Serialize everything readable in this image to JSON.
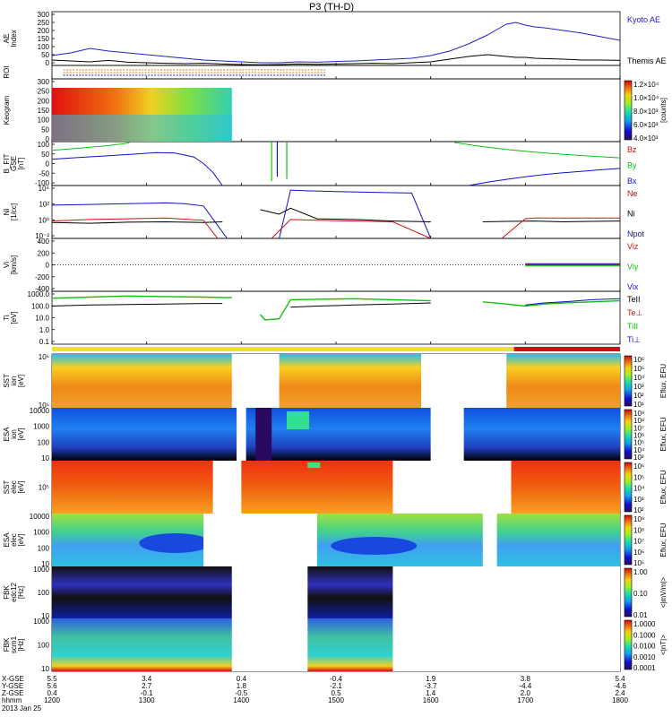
{
  "title": "P3 (TH-D)",
  "colors": {
    "kyoto": "#2020c0",
    "themis": "#000000",
    "bx": "#1010c8",
    "by": "#10c010",
    "bz": "#d01010",
    "red": "#d01010",
    "green": "#10c010",
    "blue": "#1010c8",
    "roi_orange": "#e07818",
    "roi_blue": "#202090",
    "bar_yellow": "#f0e028",
    "bar_red": "#d01010"
  },
  "chart_data": [
    {
      "type": "line",
      "id": "ae",
      "ylabel": "AE Index",
      "ylim": [
        0,
        300
      ],
      "yticks": [
        "300",
        "250",
        "200",
        "150",
        "100",
        "50",
        "0"
      ],
      "legend": [
        "Kyoto AE",
        "Themis AE"
      ],
      "x": [
        1200,
        1220,
        1240,
        1260,
        1280,
        1300,
        1320,
        1340,
        1360,
        1380,
        1400,
        1420,
        1440,
        1460,
        1480,
        1500,
        1520,
        1540,
        1560,
        1580,
        1600,
        1620,
        1640,
        1660,
        1670,
        1680,
        1690,
        1700,
        1710,
        1720,
        1740,
        1760,
        1780,
        1800
      ],
      "series": [
        {
          "name": "Kyoto AE",
          "values": [
            55,
            70,
            95,
            80,
            70,
            60,
            50,
            40,
            30,
            25,
            20,
            15,
            15,
            20,
            18,
            22,
            25,
            30,
            35,
            40,
            55,
            80,
            120,
            170,
            200,
            230,
            240,
            225,
            215,
            210,
            195,
            180,
            160,
            140
          ]
        },
        {
          "name": "Themis AE",
          "values": [
            30,
            25,
            20,
            28,
            18,
            15,
            12,
            10,
            12,
            8,
            5,
            4,
            5,
            8,
            6,
            8,
            10,
            12,
            10,
            15,
            20,
            35,
            50,
            60,
            55,
            50,
            45,
            45,
            40,
            38,
            35,
            30,
            30,
            28
          ]
        }
      ]
    },
    {
      "type": "line",
      "id": "roi",
      "ylabel": "ROI",
      "segments": [
        {
          "start": 1212,
          "end": 1490
        }
      ],
      "rows": 3
    },
    {
      "type": "heatmap",
      "id": "keogram",
      "ylabel": "Keogram",
      "ylim": [
        0,
        300
      ],
      "yticks": [
        "300",
        "250",
        "200",
        "150",
        "100",
        "50",
        "0"
      ],
      "data_range": [
        1200,
        1390
      ],
      "colorbar": {
        "label": "[counts]",
        "ticks": [
          "1.2×10⁴",
          "1.0×10⁴",
          "8.0×10³",
          "6.0×10³",
          "4.0×10³"
        ]
      }
    },
    {
      "type": "line",
      "id": "bfield",
      "ylabel": "B_FIT GSE [nT]",
      "ylim": [
        -100,
        100
      ],
      "yticks": [
        "100",
        "50",
        "0",
        "-50",
        "-100"
      ],
      "legend": [
        "Bz",
        "By",
        "Bx"
      ],
      "series": [
        {
          "name": "Bx",
          "x": [
            1200,
            1230,
            1260,
            1290,
            1310,
            1330,
            1350,
            1360,
            1370,
            1380
          ],
          "values": [
            20,
            28,
            36,
            44,
            50,
            48,
            30,
            0,
            -40,
            -100
          ]
        },
        {
          "name": "By",
          "x": [
            1200,
            1230,
            1260,
            1278,
            1282
          ],
          "values": [
            60,
            70,
            82,
            92,
            96
          ]
        },
        {
          "name": "Bx",
          "x": [
            1640,
            1660,
            1680,
            1700,
            1720,
            1740,
            1760,
            1780,
            1800
          ],
          "values": [
            -100,
            -85,
            -72,
            -60,
            -50,
            -42,
            -35,
            -28,
            -22
          ]
        },
        {
          "name": "By",
          "x": [
            1625,
            1650,
            1680,
            1710,
            1740,
            1770,
            1800
          ],
          "values": [
            96,
            80,
            64,
            52,
            42,
            34,
            26
          ]
        }
      ],
      "spikes": [
        {
          "name": "By",
          "x": 1432,
          "values": [
            100,
            -80
          ]
        },
        {
          "name": "By",
          "x": 1448,
          "values": [
            100,
            -70
          ]
        },
        {
          "name": "Bx",
          "x": 1438,
          "values": [
            100,
            -60
          ]
        }
      ]
    },
    {
      "type": "line",
      "id": "density",
      "ylabel": "Ni [1/cc]",
      "ylim": [
        -2,
        5
      ],
      "log": true,
      "yticks": [
        "10⁴",
        "10²",
        "10⁰",
        "10⁻²"
      ],
      "legend": [
        "Ne",
        "Ni",
        "Npot"
      ],
      "series": [
        {
          "name": "Npot",
          "x": [
            1200,
            1240,
            1280,
            1320,
            1340,
            1360,
            1385
          ],
          "values": [
            2.4,
            2.5,
            2.6,
            2.7,
            2.6,
            2.3,
            -2
          ]
        },
        {
          "name": "Ni",
          "x": [
            1200,
            1240,
            1280,
            1320,
            1360,
            1380
          ],
          "values": [
            0.1,
            0.0,
            0.15,
            0.2,
            0.1,
            0.2
          ]
        },
        {
          "name": "Ne",
          "x": [
            1200,
            1240,
            1280,
            1320,
            1360,
            1375
          ],
          "values": [
            0.3,
            0.5,
            0.6,
            0.7,
            0.4,
            -2
          ]
        },
        {
          "name": "Npot",
          "x": [
            1440,
            1452,
            1470,
            1500,
            1540,
            1580,
            1600
          ],
          "values": [
            -2,
            4.4,
            4.3,
            4.2,
            4.1,
            4.0,
            -2
          ]
        },
        {
          "name": "Ni",
          "x": [
            1420,
            1440,
            1452,
            1480,
            1520,
            1560,
            1600
          ],
          "values": [
            1.8,
            1.2,
            2.0,
            0.6,
            0.5,
            0.3,
            0.2
          ]
        },
        {
          "name": "Ne",
          "x": [
            1432,
            1452,
            1480,
            1520,
            1560,
            1600
          ],
          "values": [
            -2,
            0.5,
            0.4,
            0.3,
            0.2,
            -2
          ]
        },
        {
          "name": "Ni",
          "x": [
            1655,
            1680,
            1710,
            1740,
            1770,
            1800
          ],
          "values": [
            0.2,
            0.25,
            0.3,
            0.2,
            0.25,
            0.3
          ]
        },
        {
          "name": "Ne",
          "x": [
            1675,
            1700,
            1710,
            1740,
            1770,
            1800
          ],
          "values": [
            -2,
            0.6,
            0.7,
            0.7,
            0.7,
            0.7
          ]
        }
      ]
    },
    {
      "type": "line",
      "id": "velocity",
      "ylabel": "Vi [km/s]",
      "ylim": [
        -500,
        500
      ],
      "yticks": [
        "400",
        "200",
        "0",
        "-200",
        "-400"
      ],
      "legend": [
        "Viz",
        "Viy",
        "Vix"
      ],
      "data_range": [
        1700,
        1800
      ]
    },
    {
      "type": "line",
      "id": "temperature",
      "ylabel": "Ti [eV]",
      "ylim": [
        -1,
        4
      ],
      "log": true,
      "yticks": [
        "1000.0",
        "100.0",
        "10.0",
        "1.0",
        "0.1"
      ],
      "legend": [
        "TeII",
        "Te⊥",
        "TiII",
        "Ti⊥"
      ],
      "series": [
        {
          "name": "TiII",
          "x": [
            1200,
            1240,
            1280,
            1320,
            1360,
            1390
          ],
          "values": [
            3.35,
            3.45,
            3.55,
            3.5,
            3.45,
            3.4
          ]
        },
        {
          "name": "TeII",
          "x": [
            1200,
            1240,
            1280,
            1320,
            1360,
            1380
          ],
          "values": [
            2.6,
            2.7,
            2.75,
            2.8,
            2.85,
            2.85
          ]
        },
        {
          "name": "TiII",
          "x": [
            1420,
            1425,
            1440,
            1452,
            1480,
            1520,
            1560,
            1600
          ],
          "values": [
            1.8,
            1.3,
            1.4,
            3.2,
            3.25,
            3.3,
            3.2,
            3.1
          ]
        },
        {
          "name": "TeII",
          "x": [
            1452,
            1480,
            1520,
            1560,
            1600
          ],
          "values": [
            2.5,
            2.6,
            2.7,
            2.8,
            2.9
          ]
        },
        {
          "name": "TiII",
          "x": [
            1655,
            1680,
            1700,
            1720,
            1740,
            1770,
            1800
          ],
          "values": [
            3.0,
            2.8,
            2.6,
            2.8,
            2.9,
            3.0,
            3.1
          ]
        },
        {
          "name": "Ti⊥",
          "x": [
            1700,
            1720,
            1740,
            1770,
            1800
          ],
          "values": [
            2.7,
            2.9,
            3.0,
            3.2,
            3.3
          ]
        }
      ]
    },
    {
      "type": "heatmap",
      "id": "sst_i_gse",
      "ylabel": "SST ion [eV]",
      "yticks": [
        "10⁶",
        "10⁵"
      ],
      "gaps": [
        [
          1390,
          1440
        ],
        [
          1590,
          1680
        ]
      ],
      "colorbar": {
        "label": "Eflux, EFU",
        "ticks": [
          "10⁶",
          "10⁵",
          "10⁴",
          "10³",
          "10²",
          "10¹"
        ]
      }
    },
    {
      "type": "heatmap",
      "id": "esa_i",
      "ylabel": "ESA ion [eV]",
      "yticks": [
        "10000",
        "1000",
        "100",
        "10"
      ],
      "gaps": [
        [
          1395,
          1405
        ],
        [
          1600,
          1635
        ]
      ],
      "colorbar": {
        "label": "Eflux, EFU",
        "ticks": [
          "10⁹",
          "10⁸",
          "10⁷",
          "10⁶",
          "10⁵",
          "10⁴",
          "10³"
        ]
      }
    },
    {
      "type": "heatmap",
      "id": "sst_e",
      "ylabel": "SST elec [eV]",
      "yticks": [
        "10⁵"
      ],
      "gaps": [
        [
          1370,
          1400
        ],
        [
          1560,
          1685
        ]
      ],
      "colorbar": {
        "label": "Eflux, EFU",
        "ticks": [
          "10⁶",
          "10⁵",
          "10⁴",
          "10³",
          "10²"
        ]
      }
    },
    {
      "type": "heatmap",
      "id": "esa_e",
      "ylabel": "ESA elec [eV]",
      "yticks": [
        "10000",
        "1000",
        "100",
        "10"
      ],
      "gaps": [
        [
          1360,
          1480
        ],
        [
          1655,
          1670
        ]
      ],
      "colorbar": {
        "label": "Eflux, EFU",
        "ticks": [
          "10⁹",
          "10⁸",
          "10⁷",
          "10⁶",
          "10⁵"
        ]
      }
    },
    {
      "type": "heatmap",
      "id": "fbk_edc",
      "ylabel": "FBK edc12 [Hz]",
      "yticks": [
        "1000",
        "100",
        "10"
      ],
      "gaps": [
        [
          1390,
          1470
        ],
        [
          1560,
          1800
        ]
      ],
      "colorbar": {
        "label": "<|mV/m|>",
        "ticks": [
          "1.00",
          "0.10",
          "0.01"
        ]
      }
    },
    {
      "type": "heatmap",
      "id": "fbk_scm",
      "ylabel": "FBK scm1 [Hz]",
      "yticks": [
        "1000",
        "100",
        "10"
      ],
      "gaps": [
        [
          1390,
          1470
        ],
        [
          1560,
          1800
        ]
      ],
      "colorbar": {
        "label": "<|nT|>",
        "ticks": [
          "1.0000",
          "0.1000",
          "0.0100",
          "0.0010",
          "0.0001"
        ]
      }
    }
  ],
  "xaxis": {
    "row_labels": [
      "X-GSE",
      "Y-GSE",
      "Z-GSE",
      "hhmm",
      "2013 Jan 25"
    ],
    "columns": [
      {
        "values": [
          "5.5",
          "5.6",
          "0.4",
          "1200"
        ]
      },
      {
        "values": [
          "3.4",
          "2.7",
          "-0.1",
          "1300"
        ]
      },
      {
        "values": [
          "0.4",
          "1.8",
          "-0.5",
          "1400"
        ]
      },
      {
        "values": [
          "-0.4",
          "-2.1",
          "0.5",
          "1500"
        ]
      },
      {
        "values": [
          "1.9",
          "-3.7",
          "1.4",
          "1600"
        ]
      },
      {
        "values": [
          "3.8",
          "-4.4",
          "2.0",
          "1700"
        ]
      },
      {
        "values": [
          "5.4",
          "-4.6",
          "2.4",
          "1800"
        ]
      }
    ]
  }
}
